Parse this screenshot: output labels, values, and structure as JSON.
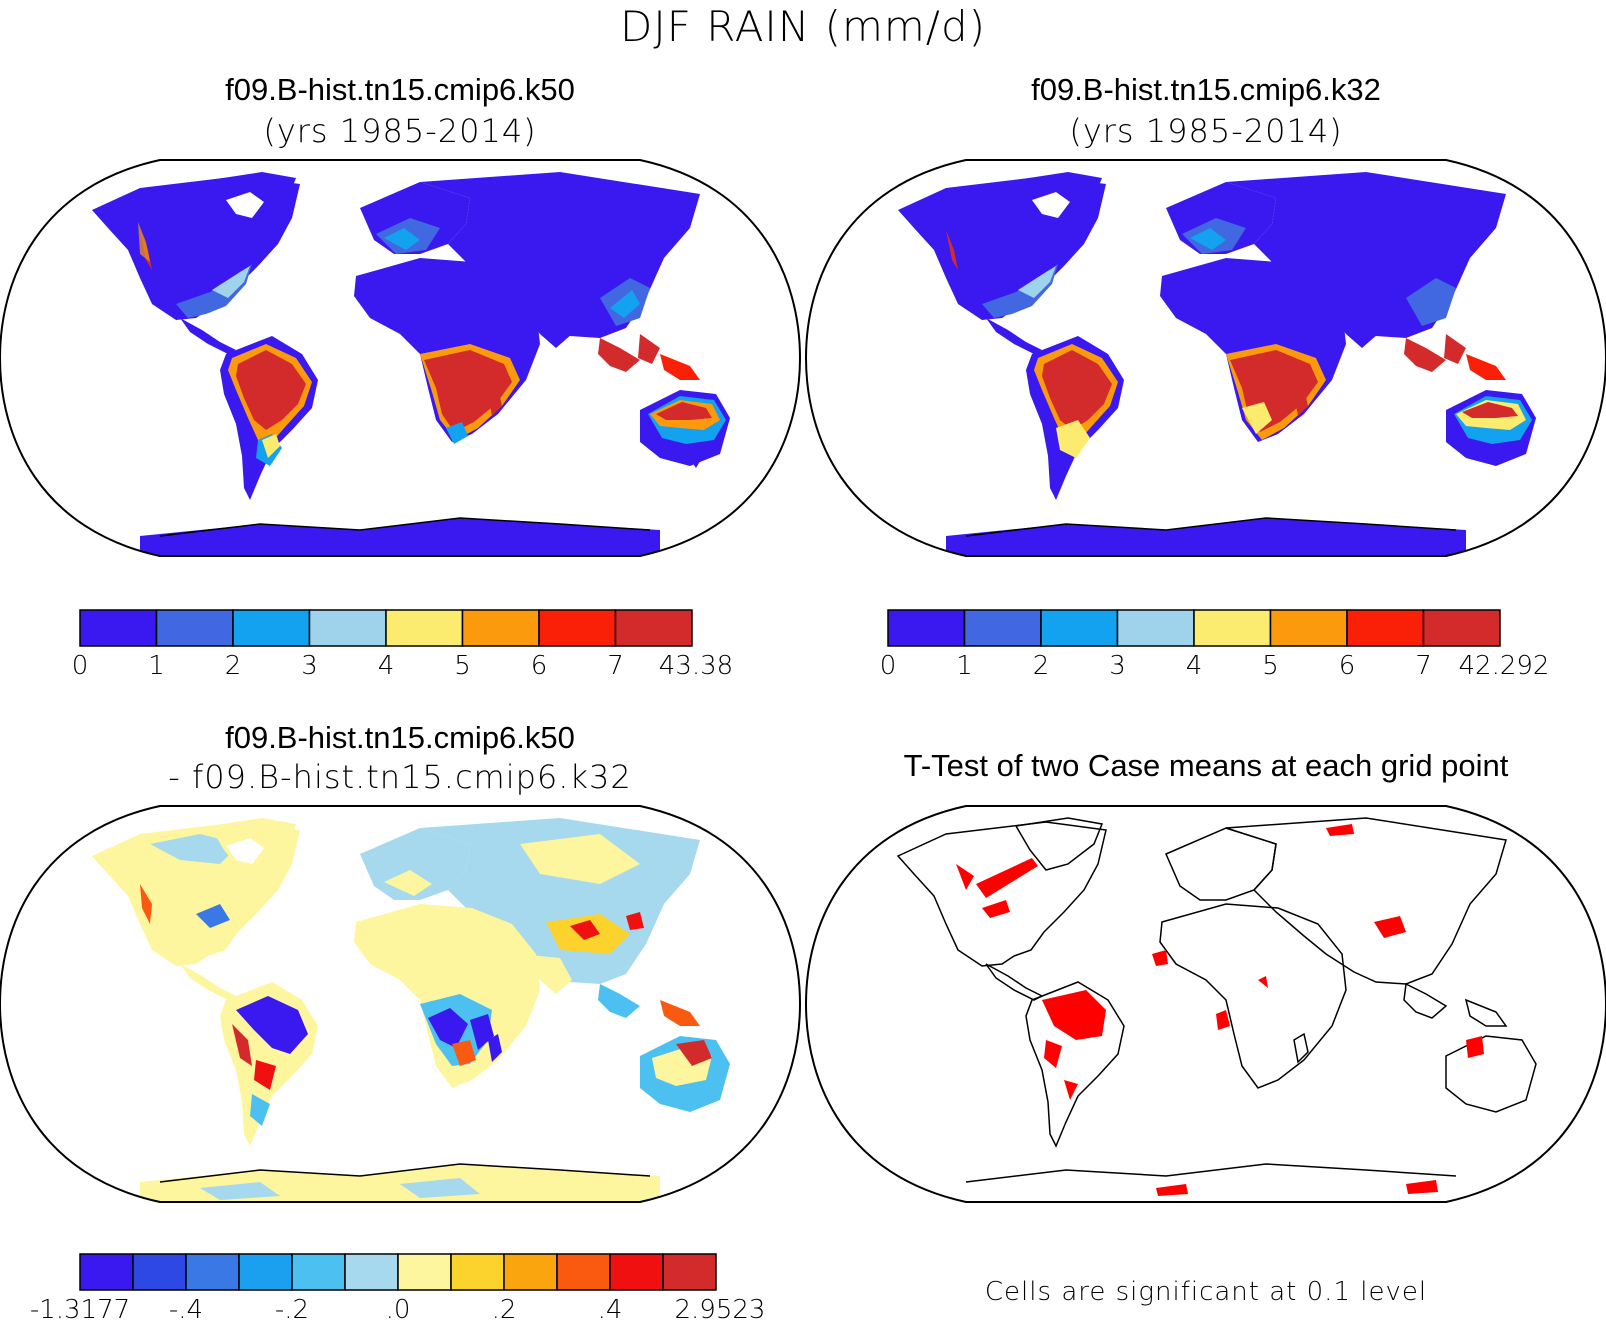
{
  "figure": {
    "title": "DJF RAIN (mm/d)"
  },
  "panels": [
    {
      "id": "k50",
      "title": "f09.B-hist.tn15.cmip6.k50",
      "subtitle": "(yrs 1985-2014)",
      "colorbar": {
        "colors": [
          "#3a18f0",
          "#4168e0",
          "#12a2f0",
          "#9fd3ec",
          "#fbeb6e",
          "#fa9a0c",
          "#fa2008",
          "#d32b2b"
        ],
        "ticks": [
          "0",
          "1",
          "2",
          "3",
          "4",
          "5",
          "6",
          "7",
          "43.38"
        ]
      }
    },
    {
      "id": "k32",
      "title": "f09.B-hist.tn15.cmip6.k32",
      "subtitle": "(yrs 1985-2014)",
      "colorbar": {
        "colors": [
          "#3a18f0",
          "#4168e0",
          "#12a2f0",
          "#9fd3ec",
          "#fbeb6e",
          "#fa9a0c",
          "#fa2008",
          "#d32b2b"
        ],
        "ticks": [
          "0",
          "1",
          "2",
          "3",
          "4",
          "5",
          "6",
          "7",
          "42.292"
        ]
      }
    },
    {
      "id": "diff",
      "title": "f09.B-hist.tn15.cmip6.k50",
      "subtitle": "- f09.B-hist.tn15.cmip6.k32",
      "colorbar": {
        "colors": [
          "#3a18f0",
          "#2e48e6",
          "#3a78e6",
          "#1aa0ee",
          "#4cc0f0",
          "#a6d8ee",
          "#fdf69e",
          "#fcd22c",
          "#fba50e",
          "#fa5a10",
          "#f01010",
          "#d32b2b"
        ],
        "ticks": [
          "-1.3177",
          "-.4",
          "-.2",
          ".0",
          ".2",
          ".4",
          "2.9523"
        ]
      }
    },
    {
      "id": "ttest",
      "title": "T-Test of two Case means at each grid point",
      "note": "Cells are significant at 0.1 level",
      "significant_color": "#ff0000"
    }
  ]
}
